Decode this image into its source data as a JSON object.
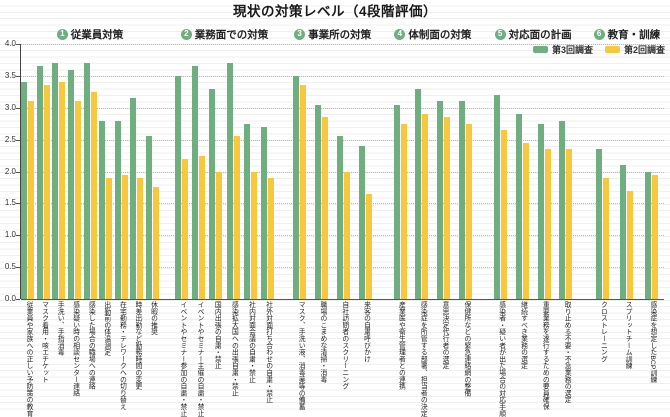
{
  "title": "現状の対策レベル（4段階評価）",
  "legend": [
    {
      "label": "第3回調査",
      "color": "#6fae7e"
    },
    {
      "label": "第2回調査",
      "color": "#f8c73c"
    }
  ],
  "colors": {
    "series_round3": "#6fae7e",
    "series_round2": "#f8c73c",
    "group_number_circle": "#6fae7e",
    "axis_line": "#444444",
    "gridline_dotted": "#b8b8b8"
  },
  "y_axis": {
    "min": 0,
    "max": 4,
    "step": 0.5,
    "tick_labels": [
      "4.0",
      "3.5",
      "3.0",
      "2.5",
      "2.0",
      "1.5",
      "1.0",
      "0.5",
      "0.0"
    ]
  },
  "chart_data": {
    "type": "bar",
    "title": "現状の対策レベル（4段階評価）",
    "ylim": [
      0,
      4
    ],
    "legend_position": "top-right",
    "grid": "horizontal-dotted-every-0.5",
    "series_names": [
      "第3回調査",
      "第2回調査"
    ],
    "groups": [
      {
        "number": "1",
        "name": "従業員対策",
        "items": [
          {
            "label": "従業員や家族への正しい予防策の教育",
            "round3": 3.4,
            "round2": 3.1
          },
          {
            "label": "マスク着用・咳エチケット",
            "round3": 3.65,
            "round2": 3.35
          },
          {
            "label": "手洗い、手指消毒",
            "round3": 3.7,
            "round2": 3.4
          },
          {
            "label": "感染疑い時の相談センター連絡",
            "round3": 3.6,
            "round2": 3.1
          },
          {
            "label": "感染した場合の職場への連絡",
            "round3": 3.7,
            "round2": 3.25
          },
          {
            "label": "出勤前の体温測定",
            "round3": 2.8,
            "round2": 1.9
          },
          {
            "label": "在宅勤務・テレワークへの切り替え",
            "round3": 2.8,
            "round2": 1.95
          },
          {
            "label": "時差出勤など勤務時間の変更",
            "round3": 3.15,
            "round2": 1.9
          },
          {
            "label": "休暇の推奨",
            "round3": 2.55,
            "round2": 1.75
          }
        ]
      },
      {
        "number": "2",
        "name": "業務面での対策",
        "items": [
          {
            "label": "イベントやセミナー参加の自粛・禁止",
            "round3": 3.5,
            "round2": 2.2
          },
          {
            "label": "イベントやセミナー主催の自粛・禁止",
            "round3": 3.65,
            "round2": 2.25
          },
          {
            "label": "国内出張の自粛・禁止",
            "round3": 3.3,
            "round2": 2.0
          },
          {
            "label": "感染拡大国への出張自粛・禁止",
            "round3": 3.7,
            "round2": 2.55
          },
          {
            "label": "社内対面会議の自粛・禁止",
            "round3": 2.75,
            "round2": 2.0
          },
          {
            "label": "社外対面打ち合わせの自粛・禁止",
            "round3": 2.7,
            "round2": 1.9
          }
        ]
      },
      {
        "number": "3",
        "name": "事業所の対策",
        "items": [
          {
            "label": "マスク、手洗い液、消毒薬等の備蓄",
            "round3": 3.5,
            "round2": 3.35
          },
          {
            "label": "職場のこまめな清掃・消毒",
            "round3": 3.05,
            "round2": 2.85
          },
          {
            "label": "自社訪問者のスクリーニング",
            "round3": 2.55,
            "round2": 2.0
          },
          {
            "label": "来客の自粛呼びかけ",
            "round3": 2.4,
            "round2": 1.65
          }
        ]
      },
      {
        "number": "4",
        "name": "体制面の対策",
        "items": [
          {
            "label": "産業医や衛生管理者との連携",
            "round3": 3.05,
            "round2": 2.75
          },
          {
            "label": "感染症を所管する部署、担当者の決定",
            "round3": 3.3,
            "round2": 2.9
          },
          {
            "label": "意思決定代行者の選定",
            "round3": 3.1,
            "round2": 2.85
          },
          {
            "label": "保健所などの緊急連絡網の整備",
            "round3": 3.1,
            "round2": 2.75
          }
        ]
      },
      {
        "number": "5",
        "name": "対応面の計画",
        "items": [
          {
            "label": "感染者・疑い者が出た場合の対応手順",
            "round3": 3.2,
            "round2": 2.65
          },
          {
            "label": "継続すべき業務の選定",
            "round3": 2.9,
            "round2": 2.45
          },
          {
            "label": "重要業務を遂行するための要員確保",
            "round3": 2.75,
            "round2": 2.35
          },
          {
            "label": "取り止める不要・不急業務の選定",
            "round3": 2.8,
            "round2": 2.35
          }
        ]
      },
      {
        "number": "6",
        "name": "教育・訓練",
        "items": [
          {
            "label": "クロストレーニング",
            "round3": 2.35,
            "round2": 1.9
          },
          {
            "label": "スプリットチーム訓練",
            "round3": 2.1,
            "round2": 1.7
          },
          {
            "label": "感染症を想定したBCP訓練",
            "round3": 2.0,
            "round2": 1.95
          }
        ]
      }
    ]
  }
}
